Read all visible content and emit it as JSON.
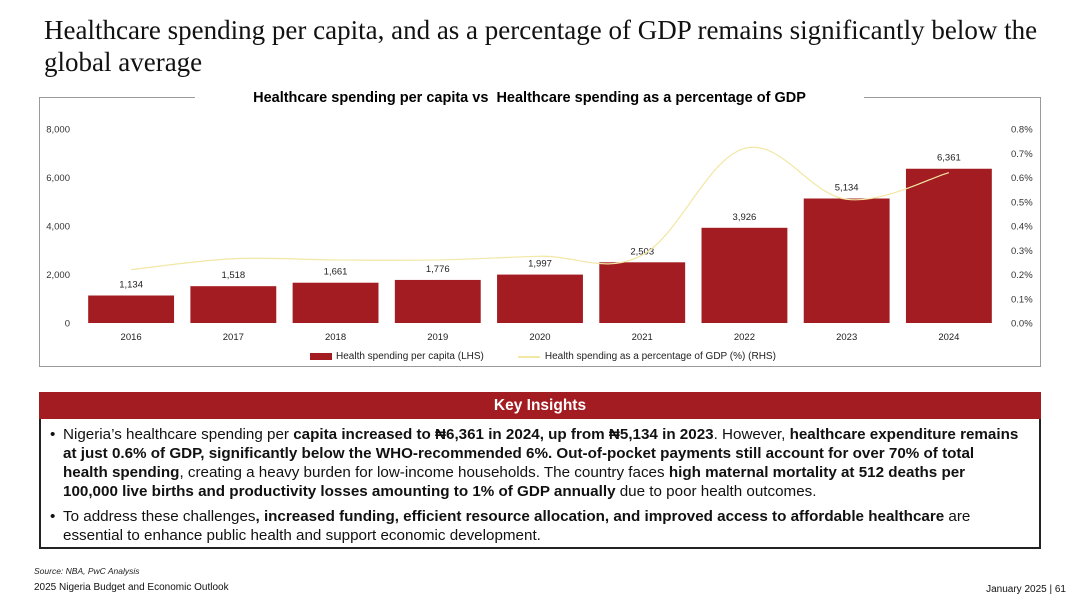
{
  "page": {
    "title": "Healthcare spending per capita, and as a percentage of GDP remains significantly below the global average"
  },
  "chart_data": {
    "type": "bar",
    "title": "Healthcare spending per capita vs  Healthcare spending as a percentage of GDP",
    "categories": [
      "2016",
      "2017",
      "2018",
      "2019",
      "2020",
      "2021",
      "2022",
      "2023",
      "2024"
    ],
    "series": [
      {
        "name": "Health spending per capita (LHS)",
        "type": "bar",
        "axis": "left",
        "values": [
          1134,
          1518,
          1661,
          1776,
          1997,
          2503,
          3926,
          5134,
          6361
        ],
        "labels": [
          "1,134",
          "1,518",
          "1,661",
          "1,776",
          "1,997",
          "2,503",
          "3,926",
          "5,134",
          "6,361"
        ]
      },
      {
        "name": "Health spending as a percentage of GDP (%) (RHS)",
        "type": "line",
        "axis": "right",
        "values": [
          0.22,
          0.265,
          0.26,
          0.26,
          0.275,
          0.28,
          0.72,
          0.51,
          0.62
        ]
      }
    ],
    "left_axis": {
      "ylim": [
        0,
        8000
      ],
      "ticks": [
        "0",
        "2,000",
        "4,000",
        "6,000",
        "8,000"
      ],
      "tick_values": [
        0,
        2000,
        4000,
        6000,
        8000
      ]
    },
    "right_axis": {
      "ylim": [
        0,
        0.8
      ],
      "ticks": [
        "0.0%",
        "0.1%",
        "0.2%",
        "0.3%",
        "0.4%",
        "0.5%",
        "0.6%",
        "0.7%",
        "0.8%"
      ],
      "tick_values": [
        0,
        0.1,
        0.2,
        0.3,
        0.4,
        0.5,
        0.6,
        0.7,
        0.8
      ]
    },
    "legend_position": "bottom",
    "grid": false
  },
  "insights": {
    "header": "Key Insights",
    "items": [
      {
        "segments": [
          {
            "text": "Nigeria’s healthcare spending per ",
            "bold": false
          },
          {
            "text": "capita increased to ₦6,361 in 2024, up from ₦5,134 in 2023",
            "bold": true
          },
          {
            "text": ". However, ",
            "bold": false
          },
          {
            "text": "healthcare expenditure remains at just 0.6% of GDP, significantly below the WHO-recommended 6%. Out-of-pocket payments still account for over 70% of total health spending",
            "bold": true
          },
          {
            "text": ", creating a heavy burden for low-income households. The country faces ",
            "bold": false
          },
          {
            "text": "high maternal mortality at 512 deaths per 100,000 live births and productivity losses amounting to 1% of GDP annually",
            "bold": true
          },
          {
            "text": " due to poor health outcomes.",
            "bold": false
          }
        ]
      },
      {
        "segments": [
          {
            "text": "To address these challenges",
            "bold": false
          },
          {
            "text": ", increased funding, efficient resource allocation, and improved access to affordable healthcare",
            "bold": true
          },
          {
            "text": " are essential to enhance public health and support economic development.",
            "bold": false
          }
        ]
      }
    ],
    "bullet": "•"
  },
  "footer": {
    "source": "Source: NBA, PwC Analysis",
    "publication": "2025 Nigeria Budget and Economic Outlook",
    "page_info": "January 2025 | 61"
  },
  "colors": {
    "bar": "#a31c21",
    "line": "#f2e7a4",
    "header": "#a31c21",
    "axis_text": "#333333"
  }
}
